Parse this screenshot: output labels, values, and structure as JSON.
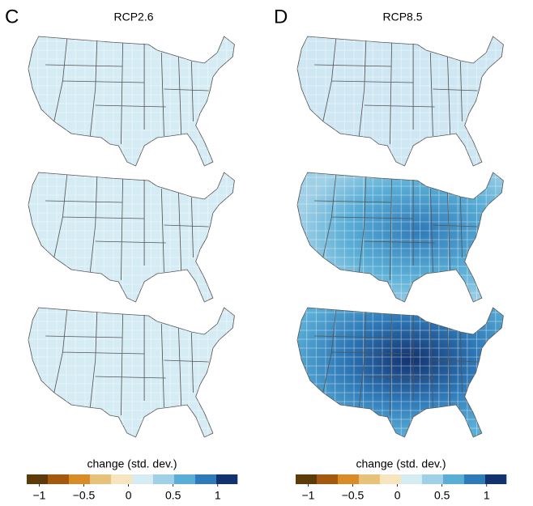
{
  "panels": [
    {
      "letter": "C",
      "title": "RCP2.6",
      "colorbar": {
        "label": "change (std. dev.)",
        "range": [
          -1.14,
          1.22
        ],
        "colors": [
          "#5c3a0a",
          "#a35a10",
          "#d88c28",
          "#e8c27a",
          "#f7e5c0",
          "#d6ecf5",
          "#9fd0e6",
          "#5aaed6",
          "#2f7ab8",
          "#12326e"
        ],
        "ticks": [
          {
            "value": -1,
            "label": "−1"
          },
          {
            "value": -0.5,
            "label": "−0.5"
          },
          0,
          0.5,
          1
        ]
      }
    },
    {
      "letter": "D",
      "title": "RCP8.5",
      "colorbar": {
        "label": "change (std. dev.)",
        "range": [
          -1.14,
          1.22
        ],
        "colors": [
          "#5c3a0a",
          "#a35a10",
          "#d88c28",
          "#e8c27a",
          "#f7e5c0",
          "#d6ecf5",
          "#9fd0e6",
          "#5aaed6",
          "#2f7ab8",
          "#12326e"
        ],
        "ticks": [
          {
            "value": -1,
            "label": "−1"
          },
          {
            "value": -0.5,
            "label": "−0.5"
          },
          0,
          0.5,
          1
        ]
      }
    }
  ]
}
